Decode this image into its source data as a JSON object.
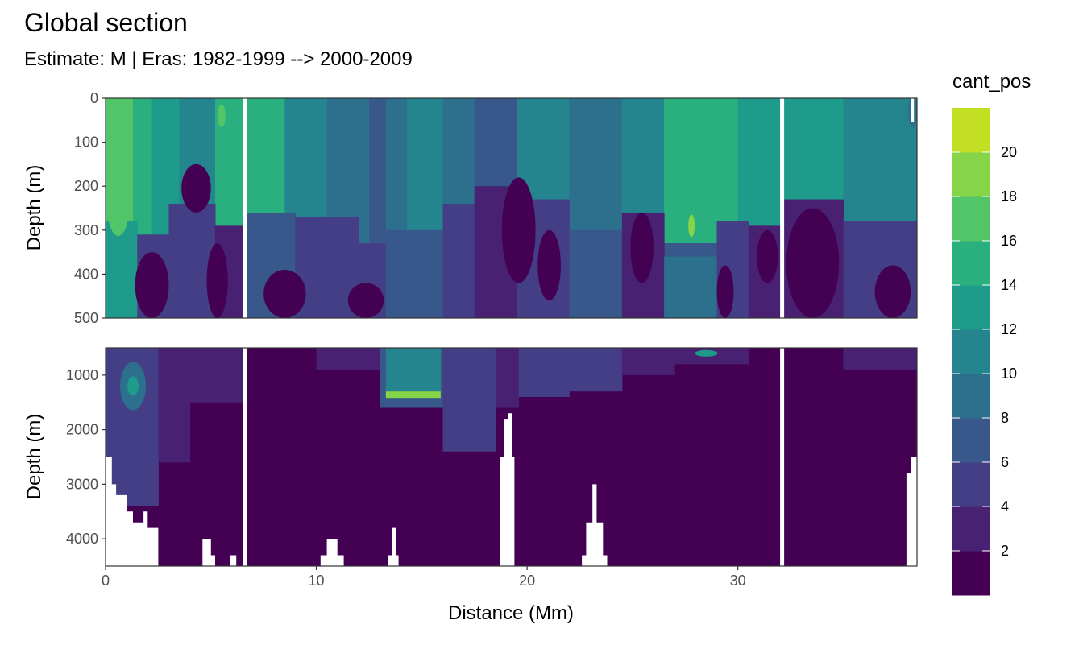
{
  "title": "Global section",
  "subtitle": "Estimate: M  | Eras: 1982-1999 --> 2000-2009",
  "chart_data": {
    "type": "heatmap",
    "title": "Global section",
    "subtitle": "Estimate: M  | Eras: 1982-1999 --> 2000-2009",
    "xlabel": "Distance (Mm)",
    "ylabel": "Depth (m)",
    "xlim": [
      0,
      38.5
    ],
    "x_ticks": [
      0,
      10,
      20,
      30
    ],
    "x_tick_labels": [
      "0",
      "10",
      "20",
      "30"
    ],
    "panels": [
      {
        "name": "upper",
        "ylim": [
          0,
          500
        ],
        "y_ticks": [
          0,
          100,
          200,
          300,
          400,
          500
        ],
        "y_tick_labels": [
          "0",
          "100",
          "200",
          "300",
          "400",
          "500"
        ],
        "ylabel": "Depth (m)"
      },
      {
        "name": "lower",
        "ylim": [
          500,
          4500
        ],
        "y_ticks": [
          1000,
          2000,
          3000,
          4000
        ],
        "y_tick_labels": [
          "1000",
          "2000",
          "3000",
          "4000"
        ],
        "ylabel": "Depth (m)"
      }
    ],
    "gaps_x": [
      6.6,
      32.1
    ],
    "legend": {
      "title": "cant_pos",
      "placement": "right",
      "breaks": [
        0,
        2,
        4,
        6,
        8,
        10,
        12,
        14,
        16,
        18,
        20,
        22
      ],
      "labels": [
        "2",
        "4",
        "6",
        "8",
        "10",
        "12",
        "14",
        "16",
        "18",
        "20"
      ],
      "colors": [
        "#440154",
        "#482173",
        "#433e85",
        "#38588c",
        "#2d708e",
        "#25858e",
        "#1e9b8a",
        "#2ab07f",
        "#52c569",
        "#86d549",
        "#c2df23",
        "#fde725"
      ]
    }
  }
}
